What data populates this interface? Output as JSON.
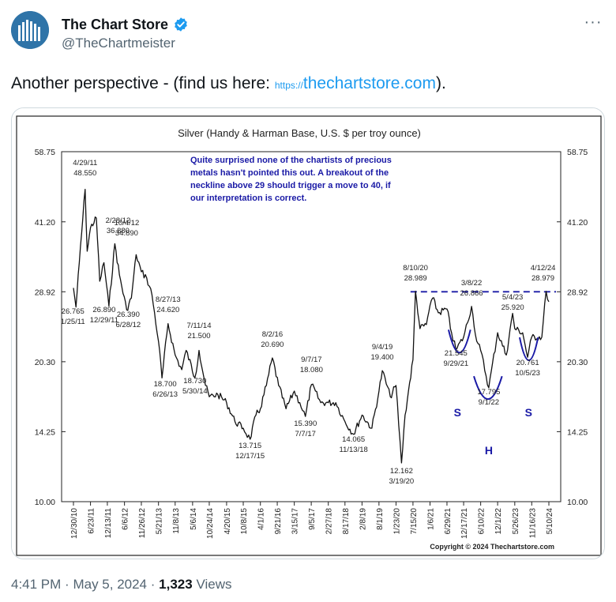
{
  "tweet": {
    "display_name": "The Chart Store",
    "handle": "@TheChartmeister",
    "text": "Another perspective - (find us here:",
    "link_prefix": "https://",
    "link_main": "thechartstore.com",
    "text_end": ").",
    "time": "4:41 PM",
    "separator": "·",
    "date": "May 5, 2024",
    "views_count": "1,323",
    "views_label": "Views",
    "more_label": "···",
    "verified_icon": "verified-badge-icon",
    "accent_color": "#1d9bf0"
  },
  "chart_data": {
    "type": "line",
    "title": "Silver (Handy & Harman Base, U.S. $ per troy ounce)",
    "scale": "log",
    "ylim": [
      10.0,
      58.75
    ],
    "y_ticks": [
      "58.75",
      "41.20",
      "28.92",
      "20.30",
      "14.25",
      "10.00"
    ],
    "x_ticks": [
      "12/30/10",
      "6/23/11",
      "12/13/11",
      "6/6/12",
      "11/26/12",
      "5/21/13",
      "11/8/13",
      "5/6/14",
      "10/24/14",
      "4/20/15",
      "10/8/15",
      "4/1/16",
      "9/21/16",
      "3/15/17",
      "9/5/17",
      "2/27/18",
      "8/17/18",
      "2/8/19",
      "8/1/19",
      "1/23/20",
      "7/15/20",
      "1/6/21",
      "6/29/21",
      "12/17/21",
      "6/10/22",
      "12/1/22",
      "5/26/23",
      "11/16/23",
      "5/10/24"
    ],
    "neckline": 28.92,
    "annotation_text": [
      "Quite surprised none of the chartists of precious",
      "metals hasn't pointed this out.  A breakout of the",
      "neckline above 29 should trigger a move to 40, if",
      "our interpretation is correct."
    ],
    "copyright": "Copyright © 2024 Thechartstore.com",
    "labels": [
      {
        "date": "4/29/11",
        "value": "48.550"
      },
      {
        "date": "1/25/11",
        "value": "26.765"
      },
      {
        "date": "12/29/11",
        "value": "26.890"
      },
      {
        "date": "2/28/12",
        "value": "36.880"
      },
      {
        "date": "10/4/12",
        "value": "34.890"
      },
      {
        "date": "6/28/12",
        "value": "26.390"
      },
      {
        "date": "8/27/13",
        "value": "24.620"
      },
      {
        "date": "6/26/13",
        "value": "18.700"
      },
      {
        "date": "7/11/14",
        "value": "21.500"
      },
      {
        "date": "5/30/14",
        "value": "18.730"
      },
      {
        "date": "12/17/15",
        "value": "13.715"
      },
      {
        "date": "8/2/16",
        "value": "20.690"
      },
      {
        "date": "9/7/17",
        "value": "18.080"
      },
      {
        "date": "7/7/17",
        "value": "15.390"
      },
      {
        "date": "11/13/18",
        "value": "14.065"
      },
      {
        "date": "9/4/19",
        "value": "19.400"
      },
      {
        "date": "3/19/20",
        "value": "12.162"
      },
      {
        "date": "8/10/20",
        "value": "28.989"
      },
      {
        "date": "3/8/22",
        "value": "26.866"
      },
      {
        "date": "9/29/21",
        "value": "21.545"
      },
      {
        "date": "9/1/22",
        "value": "17.795"
      },
      {
        "date": "5/4/23",
        "value": "25.920"
      },
      {
        "date": "10/5/23",
        "value": "20.761"
      },
      {
        "date": "4/12/24",
        "value": "28.979"
      }
    ],
    "pattern_labels": [
      "S",
      "H",
      "S"
    ],
    "series": [
      {
        "x": [
          "12/30/10",
          "1/25/11",
          "2/28/11",
          "4/29/11",
          "5/20/11",
          "6/23/11",
          "8/22/11",
          "9/26/11",
          "11/8/11",
          "12/29/11",
          "2/28/12",
          "4/15/12",
          "6/28/12",
          "8/15/12",
          "10/4/12",
          "11/26/12",
          "1/20/13",
          "3/15/13",
          "5/21/13",
          "6/26/13",
          "8/27/13",
          "11/8/13",
          "1/15/14",
          "3/1/14",
          "5/30/14",
          "7/11/14",
          "9/15/14",
          "10/24/14",
          "1/20/15",
          "4/20/15",
          "7/15/15",
          "10/8/15",
          "12/17/15",
          "2/15/16",
          "4/1/16",
          "6/1/16",
          "8/2/16",
          "10/5/16",
          "12/20/16",
          "3/15/17",
          "5/10/17",
          "7/7/17",
          "9/7/17",
          "12/12/17",
          "2/27/18",
          "5/15/18",
          "8/17/18",
          "11/13/18",
          "2/8/19",
          "5/20/19",
          "8/1/19",
          "9/4/19",
          "11/25/19",
          "1/23/20",
          "3/19/20",
          "4/25/20",
          "5/30/20",
          "7/15/20",
          "8/10/20",
          "9/25/20",
          "11/30/20",
          "1/6/21",
          "2/1/21",
          "4/1/21",
          "6/29/21",
          "8/15/21",
          "9/29/21",
          "12/17/21",
          "3/8/22",
          "5/1/22",
          "6/10/22",
          "9/1/22",
          "12/1/22",
          "2/28/23",
          "5/4/23",
          "5/26/23",
          "8/15/23",
          "10/5/23",
          "11/16/23",
          "2/28/24",
          "4/12/24",
          "5/10/24"
        ],
        "values": [
          29.5,
          26.765,
          33.5,
          48.55,
          35.5,
          40.0,
          42.0,
          30.5,
          33.5,
          26.89,
          36.88,
          31.5,
          26.39,
          28.0,
          34.89,
          32.0,
          31.0,
          28.5,
          22.5,
          18.7,
          24.62,
          21.0,
          19.5,
          21.5,
          18.73,
          21.5,
          18.0,
          17.0,
          17.2,
          16.5,
          15.0,
          14.5,
          13.715,
          15.5,
          16.0,
          18.0,
          20.69,
          18.0,
          16.0,
          17.5,
          16.5,
          15.39,
          18.08,
          16.5,
          16.5,
          16.5,
          15.0,
          14.065,
          15.5,
          14.5,
          17.5,
          19.4,
          17.0,
          18.0,
          12.162,
          15.5,
          17.5,
          20.5,
          28.989,
          24.0,
          24.5,
          27.0,
          28.0,
          26.0,
          26.5,
          23.5,
          21.545,
          23.0,
          26.866,
          22.5,
          21.5,
          17.795,
          23.5,
          21.0,
          25.92,
          24.0,
          23.5,
          20.761,
          23.0,
          23.0,
          28.979,
          27.5
        ]
      }
    ]
  }
}
